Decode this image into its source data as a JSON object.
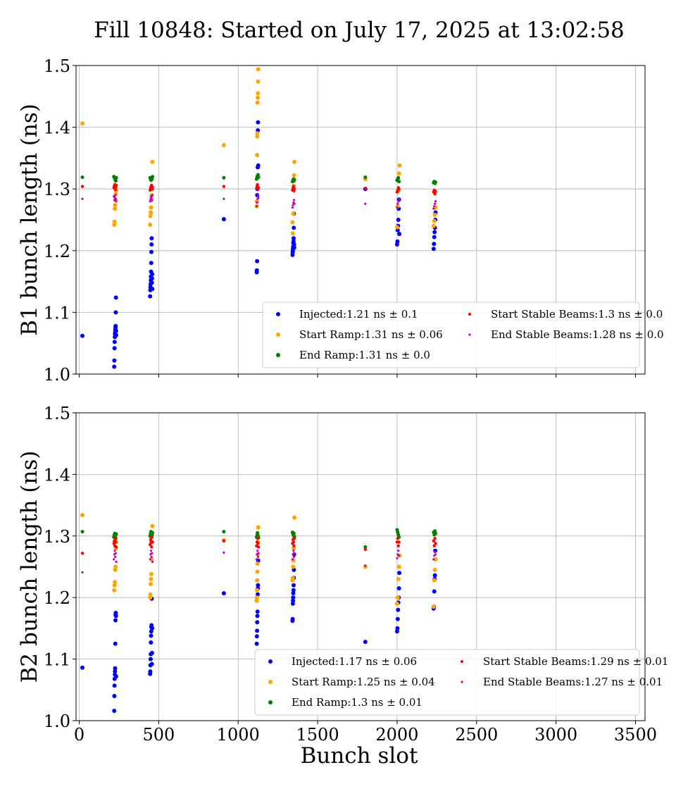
{
  "title": "Fill 10848: Started on July 17, 2025 at 13:02:58",
  "xlabel": "Bunch slot",
  "chart_data": [
    {
      "type": "scatter",
      "ylabel": "B1 bunch length (ns)",
      "xlim": [
        -20,
        3560
      ],
      "ylim": [
        1.0,
        1.5
      ],
      "xticks": [
        "0",
        "500",
        "1000",
        "1500",
        "2000",
        "2500",
        "3000",
        "3500"
      ],
      "yticks": [
        "1.0",
        "1.1",
        "1.2",
        "1.3",
        "1.4",
        "1.5"
      ],
      "grid": true,
      "legend_position": "lower-right",
      "series": [
        {
          "name": "Injected:1.21 ns ± 0.1",
          "color": "#0000ff",
          "x": [
            20,
            220,
            221,
            222,
            223,
            224,
            225,
            226,
            227,
            228,
            229,
            230,
            231,
            232,
            233,
            446,
            447,
            448,
            449,
            450,
            451,
            452,
            453,
            454,
            455,
            456,
            457,
            458,
            459,
            460,
            910,
            1117,
            1118,
            1119,
            1120,
            1121,
            1122,
            1123,
            1124,
            1125,
            1126,
            1342,
            1343,
            1344,
            1345,
            1346,
            1347,
            1348,
            1349,
            1350,
            1351,
            1352,
            1353,
            1800,
            2000,
            2002,
            2004,
            2006,
            2008,
            2010,
            2012,
            2014,
            2230,
            2232,
            2234,
            2236,
            2238,
            2240,
            2242
          ],
          "y": [
            1.062,
            1.012,
            1.022,
            1.042,
            1.052,
            1.06,
            1.065,
            1.068,
            1.072,
            1.075,
            1.078,
            1.1,
            1.124,
            1.07,
            1.063,
            1.126,
            1.136,
            1.141,
            1.146,
            1.152,
            1.158,
            1.166,
            1.18,
            1.198,
            1.21,
            1.22,
            1.148,
            1.155,
            1.162,
            1.138,
            1.251,
            1.165,
            1.168,
            1.183,
            1.29,
            1.3,
            1.32,
            1.335,
            1.395,
            1.408,
            1.338,
            1.193,
            1.197,
            1.2,
            1.203,
            1.206,
            1.212,
            1.215,
            1.22,
            1.237,
            1.26,
            1.21,
            1.205,
            1.3,
            1.21,
            1.215,
            1.233,
            1.24,
            1.25,
            1.268,
            1.283,
            1.227,
            1.203,
            1.211,
            1.222,
            1.23,
            1.237,
            1.25,
            1.262
          ]
        },
        {
          "name": "Start Ramp:1.31 ns ± 0.06",
          "color": "#ffa500",
          "x": [
            20,
            220,
            222,
            224,
            226,
            228,
            230,
            232,
            446,
            448,
            450,
            452,
            454,
            456,
            458,
            460,
            910,
            1117,
            1118,
            1119,
            1120,
            1121,
            1122,
            1123,
            1124,
            1125,
            1126,
            1342,
            1344,
            1346,
            1348,
            1350,
            1352,
            1354,
            1800,
            2000,
            2004,
            2008,
            2012,
            2016,
            2230,
            2234,
            2238,
            2242
          ],
          "y": [
            1.406,
            1.242,
            1.247,
            1.268,
            1.274,
            1.282,
            1.292,
            1.298,
            1.242,
            1.256,
            1.262,
            1.27,
            1.282,
            1.29,
            1.3,
            1.344,
            1.371,
            1.272,
            1.28,
            1.355,
            1.385,
            1.39,
            1.44,
            1.448,
            1.455,
            1.474,
            1.494,
            1.246,
            1.228,
            1.26,
            1.3,
            1.305,
            1.322,
            1.344,
            1.316,
            1.238,
            1.272,
            1.297,
            1.325,
            1.338,
            1.24,
            1.248,
            1.258,
            1.27
          ]
        },
        {
          "name": "End Ramp:1.31 ns ± 0.0",
          "color": "#008000",
          "x": [
            20,
            218,
            221,
            224,
            227,
            230,
            233,
            446,
            449,
            452,
            455,
            458,
            461,
            910,
            1116,
            1119,
            1122,
            1125,
            1128,
            1342,
            1345,
            1348,
            1351,
            1354,
            1800,
            2000,
            2004,
            2008,
            2012,
            2230,
            2234,
            2238,
            2242
          ],
          "y": [
            1.319,
            1.32,
            1.319,
            1.317,
            1.315,
            1.313,
            1.318,
            1.318,
            1.316,
            1.314,
            1.318,
            1.316,
            1.32,
            1.318,
            1.316,
            1.318,
            1.32,
            1.323,
            1.319,
            1.312,
            1.314,
            1.316,
            1.313,
            1.315,
            1.319,
            1.314,
            1.316,
            1.318,
            1.312,
            1.31,
            1.312,
            1.309,
            1.311
          ]
        },
        {
          "name": "Start Stable Beams:1.3 ns ± 0.0",
          "color": "#ff0000",
          "x": [
            20,
            218,
            221,
            224,
            227,
            230,
            233,
            446,
            449,
            452,
            455,
            458,
            461,
            910,
            1116,
            1119,
            1122,
            1125,
            1128,
            1342,
            1345,
            1348,
            1351,
            1354,
            1800,
            2000,
            2004,
            2008,
            2012,
            2230,
            2234,
            2238,
            2242
          ],
          "y": [
            1.304,
            1.302,
            1.305,
            1.307,
            1.299,
            1.303,
            1.306,
            1.298,
            1.301,
            1.304,
            1.306,
            1.3,
            1.303,
            1.304,
            1.301,
            1.304,
            1.307,
            1.3,
            1.302,
            1.298,
            1.301,
            1.304,
            1.297,
            1.3,
            1.301,
            1.295,
            1.298,
            1.302,
            1.3,
            1.295,
            1.298,
            1.292,
            1.296
          ]
        },
        {
          "name": "End Stable Beams:1.28 ns ± 0.0",
          "color": "#bf00bf",
          "x": [
            20,
            218,
            221,
            224,
            227,
            230,
            233,
            446,
            449,
            452,
            455,
            458,
            461,
            910,
            1116,
            1119,
            1122,
            1125,
            1128,
            1342,
            1345,
            1348,
            1351,
            1354,
            1800,
            2000,
            2004,
            2008,
            2012,
            2230,
            2234,
            2238,
            2242
          ],
          "y": [
            1.284,
            1.288,
            1.282,
            1.286,
            1.29,
            1.284,
            1.28,
            1.28,
            1.284,
            1.288,
            1.286,
            1.282,
            1.29,
            1.284,
            1.272,
            1.278,
            1.284,
            1.29,
            1.286,
            1.27,
            1.274,
            1.278,
            1.282,
            1.276,
            1.276,
            1.27,
            1.276,
            1.28,
            1.284,
            1.268,
            1.272,
            1.276,
            1.28
          ]
        }
      ]
    },
    {
      "type": "scatter",
      "ylabel": "B2 bunch length (ns)",
      "xlim": [
        -20,
        3560
      ],
      "ylim": [
        1.0,
        1.5
      ],
      "xticks": [
        "0",
        "500",
        "1000",
        "1500",
        "2000",
        "2500",
        "3000",
        "3500"
      ],
      "yticks": [
        "1.0",
        "1.1",
        "1.2",
        "1.3",
        "1.4",
        "1.5"
      ],
      "grid": true,
      "legend_position": "lower-right",
      "series": [
        {
          "name": "Injected:1.17 ns ± 0.06",
          "color": "#0000ff",
          "x": [
            20,
            220,
            221,
            222,
            223,
            224,
            225,
            226,
            227,
            228,
            229,
            230,
            231,
            232,
            446,
            447,
            448,
            449,
            450,
            451,
            452,
            453,
            454,
            455,
            456,
            457,
            458,
            459,
            910,
            1117,
            1118,
            1119,
            1120,
            1121,
            1122,
            1123,
            1124,
            1125,
            1126,
            1342,
            1343,
            1344,
            1345,
            1346,
            1347,
            1348,
            1349,
            1350,
            1351,
            1352,
            1800,
            2000,
            2002,
            2004,
            2006,
            2008,
            2010,
            2012,
            2014,
            2230,
            2232,
            2234,
            2236,
            2238,
            2240
          ],
          "y": [
            1.086,
            1.016,
            1.04,
            1.057,
            1.068,
            1.075,
            1.08,
            1.085,
            1.125,
            1.163,
            1.172,
            1.175,
            1.17,
            1.072,
            1.076,
            1.08,
            1.09,
            1.1,
            1.108,
            1.127,
            1.138,
            1.145,
            1.152,
            1.155,
            1.198,
            1.092,
            1.11,
            1.15,
            1.207,
            1.125,
            1.137,
            1.146,
            1.16,
            1.17,
            1.177,
            1.205,
            1.215,
            1.22,
            1.26,
            1.162,
            1.165,
            1.19,
            1.195,
            1.2,
            1.207,
            1.212,
            1.22,
            1.232,
            1.245,
            1.27,
            1.128,
            1.145,
            1.15,
            1.165,
            1.18,
            1.192,
            1.2,
            1.215,
            1.24,
            1.182,
            1.185,
            1.21,
            1.23,
            1.236,
            1.276
          ]
        },
        {
          "name": "Start Ramp:1.25 ns ± 0.04",
          "color": "#ffa500",
          "x": [
            20,
            220,
            222,
            224,
            226,
            228,
            230,
            232,
            446,
            448,
            450,
            452,
            454,
            456,
            458,
            460,
            910,
            1117,
            1118,
            1119,
            1120,
            1121,
            1122,
            1123,
            1124,
            1125,
            1126,
            1342,
            1344,
            1346,
            1348,
            1350,
            1352,
            1354,
            1800,
            2000,
            2004,
            2008,
            2012,
            2016,
            2230,
            2234,
            2238,
            2242
          ],
          "y": [
            1.334,
            1.212,
            1.22,
            1.225,
            1.245,
            1.25,
            1.28,
            1.29,
            1.2,
            1.205,
            1.222,
            1.23,
            1.238,
            1.262,
            1.29,
            1.316,
            1.293,
            1.195,
            1.2,
            1.212,
            1.228,
            1.242,
            1.255,
            1.27,
            1.29,
            1.3,
            1.314,
            1.228,
            1.232,
            1.25,
            1.26,
            1.28,
            1.298,
            1.33,
            1.25,
            1.19,
            1.2,
            1.23,
            1.25,
            1.268,
            1.185,
            1.228,
            1.245,
            1.262
          ]
        },
        {
          "name": "End Ramp:1.3 ns ± 0.01",
          "color": "#008000",
          "x": [
            20,
            218,
            221,
            224,
            227,
            230,
            233,
            446,
            449,
            452,
            455,
            458,
            461,
            910,
            1116,
            1119,
            1122,
            1125,
            1128,
            1342,
            1345,
            1348,
            1351,
            1354,
            1800,
            2000,
            2004,
            2008,
            2012,
            2230,
            2234,
            2238,
            2242
          ],
          "y": [
            1.307,
            1.298,
            1.302,
            1.304,
            1.3,
            1.296,
            1.303,
            1.3,
            1.304,
            1.307,
            1.298,
            1.302,
            1.305,
            1.307,
            1.298,
            1.302,
            1.305,
            1.3,
            1.297,
            1.306,
            1.303,
            1.301,
            1.304,
            1.299,
            1.282,
            1.31,
            1.306,
            1.302,
            1.298,
            1.306,
            1.302,
            1.308,
            1.304
          ]
        },
        {
          "name": "Start Stable Beams:1.29 ns ± 0.01",
          "color": "#ff0000",
          "x": [
            20,
            218,
            221,
            224,
            227,
            230,
            233,
            446,
            449,
            452,
            455,
            458,
            461,
            910,
            1116,
            1119,
            1122,
            1125,
            1128,
            1342,
            1345,
            1348,
            1351,
            1354,
            1800,
            2000,
            2004,
            2008,
            2012,
            2230,
            2234,
            2238,
            2242
          ],
          "y": [
            1.272,
            1.288,
            1.292,
            1.284,
            1.296,
            1.29,
            1.282,
            1.286,
            1.294,
            1.29,
            1.282,
            1.298,
            1.29,
            1.292,
            1.284,
            1.29,
            1.296,
            1.288,
            1.282,
            1.288,
            1.294,
            1.29,
            1.284,
            1.296,
            1.278,
            1.29,
            1.296,
            1.284,
            1.29,
            1.292,
            1.284,
            1.296,
            1.288
          ]
        },
        {
          "name": "End Stable Beams:1.27 ns ± 0.01",
          "color": "#bf00bf",
          "x": [
            20,
            218,
            221,
            224,
            227,
            230,
            233,
            446,
            449,
            452,
            455,
            458,
            461,
            910,
            1116,
            1119,
            1122,
            1125,
            1128,
            1342,
            1345,
            1348,
            1351,
            1354,
            1800,
            2000,
            2004,
            2008,
            2012,
            2230,
            2234,
            2238,
            2242
          ],
          "y": [
            1.241,
            1.262,
            1.27,
            1.276,
            1.266,
            1.272,
            1.258,
            1.262,
            1.27,
            1.276,
            1.266,
            1.272,
            1.258,
            1.273,
            1.262,
            1.27,
            1.276,
            1.266,
            1.272,
            1.262,
            1.27,
            1.276,
            1.266,
            1.272,
            1.252,
            1.264,
            1.27,
            1.276,
            1.268,
            1.262,
            1.268,
            1.274,
            1.27
          ]
        }
      ]
    }
  ]
}
